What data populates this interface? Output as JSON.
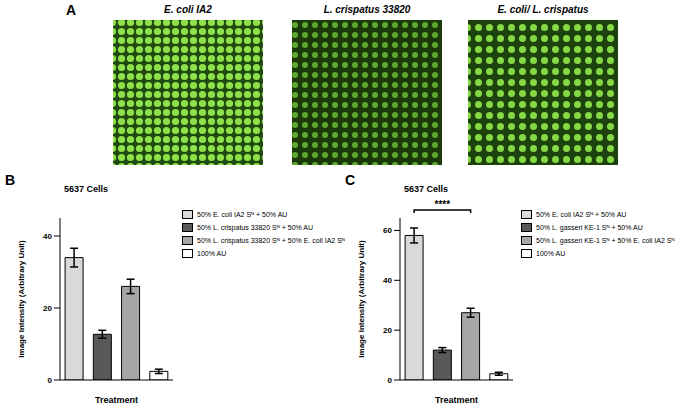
{
  "panel_a": {
    "panel": "A",
    "images": [
      "E. coli IA2",
      "L. crispatus 33820",
      "E. coli/ L. crispatus"
    ]
  },
  "chart_data": [
    {
      "type": "bar",
      "panel": "B",
      "title": "5637 Cells",
      "x_label": "Treatment",
      "y_label": "Image Intensity (Arbitrary Unit)",
      "categories": [
        "50% E. coli IA2 Sᴺ + 50% AU",
        "50% L. crispatus 33820 Sᴺ + 50% AU",
        "50% L. crispatus 33820 Sᴺ + 50% E. coli IA2 Sᴺ",
        "100% AU"
      ],
      "values": [
        34,
        12.7,
        26,
        2.4
      ],
      "errors": [
        2.6,
        1.1,
        2,
        0.6
      ],
      "colors": [
        "#d9d9d9",
        "#595959",
        "#a6a6a6",
        "#ffffff"
      ],
      "ylim": [
        0,
        45
      ],
      "yticks": [
        0,
        20,
        40
      ],
      "grid": false,
      "tick_labels": "y"
    },
    {
      "type": "bar",
      "panel": "C",
      "title": "5637 Cells",
      "x_label": "Treatment",
      "y_label": "Image Intensity (Arbitrary Unit)",
      "categories": [
        "50% E. coli IA2 Sᴺ + 50% AU",
        "50% L. gasseri KE-1 Sᴺ + 50% AU",
        "50% L. gasseri KE-1 Sᴺ + 50% E. coli IA2 Sᴺ",
        "100% AU"
      ],
      "values": [
        58,
        12,
        27,
        2.5
      ],
      "errors": [
        3,
        1,
        1.8,
        0.6
      ],
      "colors": [
        "#d9d9d9",
        "#595959",
        "#a6a6a6",
        "#ffffff"
      ],
      "ylim": [
        0,
        65
      ],
      "yticks": [
        0,
        20,
        40,
        60
      ],
      "grid": false,
      "tick_labels": "y",
      "annotations": [
        "****"
      ]
    }
  ]
}
